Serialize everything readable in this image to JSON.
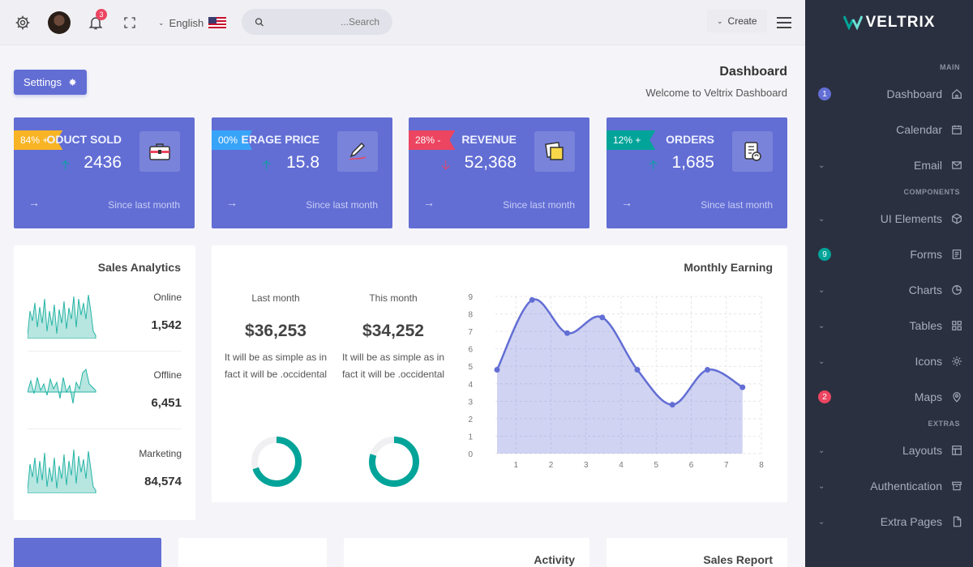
{
  "topbar": {
    "notifications_count": "3",
    "language": "English",
    "search_placeholder": "...Search",
    "create_label": "Create"
  },
  "sidebar": {
    "brand": "VELTRIX",
    "sections": {
      "main": "MAIN",
      "components": "COMPONENTS",
      "extras": "EXTRAS"
    },
    "items": {
      "dashboard": {
        "label": "Dashboard",
        "badge": "1"
      },
      "calendar": {
        "label": "Calendar"
      },
      "email": {
        "label": "Email"
      },
      "ui_elements": {
        "label": "UI Elements"
      },
      "forms": {
        "label": "Forms",
        "badge": "9"
      },
      "charts": {
        "label": "Charts"
      },
      "tables": {
        "label": "Tables"
      },
      "icons": {
        "label": "Icons"
      },
      "maps": {
        "label": "Maps",
        "badge": "2"
      },
      "layouts": {
        "label": "Layouts"
      },
      "authentication": {
        "label": "Authentication"
      },
      "extra_pages": {
        "label": "Extra Pages"
      }
    }
  },
  "header": {
    "settings_label": "Settings",
    "title": "Dashboard",
    "subtitle": "Welcome to Veltrix Dashboard"
  },
  "stats": [
    {
      "badge": "84% +",
      "badge_color": "#f8b425",
      "title": "ODUCT SOLD",
      "value": "2436",
      "trend": "up",
      "since": "Since last month"
    },
    {
      "badge": "00%",
      "badge_color": "#38a4f8",
      "title": "ERAGE PRICE",
      "value": "15.8",
      "trend": "up",
      "since": "Since last month"
    },
    {
      "badge": "28% -",
      "badge_color": "#ec4561",
      "title": "REVENUE",
      "value": "52,368",
      "trend": "down",
      "since": "Since last month"
    },
    {
      "badge": "12% +",
      "badge_color": "#02a499",
      "title": "ORDERS",
      "value": "1,685",
      "trend": "up",
      "since": "Since last month"
    }
  ],
  "sales_analytics": {
    "title": "Sales Analytics",
    "rows": [
      {
        "label": "Online",
        "value": "1,542"
      },
      {
        "label": "Offline",
        "value": "6,451"
      },
      {
        "label": "Marketing",
        "value": "84,574"
      }
    ]
  },
  "monthly_earning": {
    "title": "Monthly Earning",
    "last_month": {
      "label": "Last month",
      "amount": "$36,253",
      "description": "It will be as simple as in fact it will be .occidental",
      "ring_fraction": 0.7
    },
    "this_month": {
      "label": "This month",
      "amount": "$34,252",
      "description": "It will be as simple as in fact it will be .occidental",
      "ring_fraction": 0.8
    },
    "chart_data": {
      "type": "area",
      "x": [
        0,
        1,
        2,
        3,
        4,
        5,
        6,
        7
      ],
      "values": [
        4.8,
        8.8,
        6.9,
        7.8,
        4.8,
        2.8,
        4.8,
        3.8
      ],
      "xticks": [
        "1",
        "2",
        "3",
        "4",
        "5",
        "6",
        "7",
        "8"
      ],
      "yticks": [
        "0",
        "1",
        "2",
        "3",
        "4",
        "5",
        "6",
        "7",
        "8",
        "9"
      ],
      "ylim": [
        0,
        9
      ],
      "xlim": [
        0,
        8
      ],
      "grid": true,
      "color": "#626ed4"
    }
  },
  "bottom": {
    "activity_title": "Activity",
    "sales_report_title": "Sales Report"
  },
  "colors": {
    "primary": "#626ed4",
    "sidebar_bg": "#2b3040",
    "success": "#02a499",
    "danger": "#ec4561",
    "warning": "#f8b425",
    "info": "#38a4f8"
  }
}
